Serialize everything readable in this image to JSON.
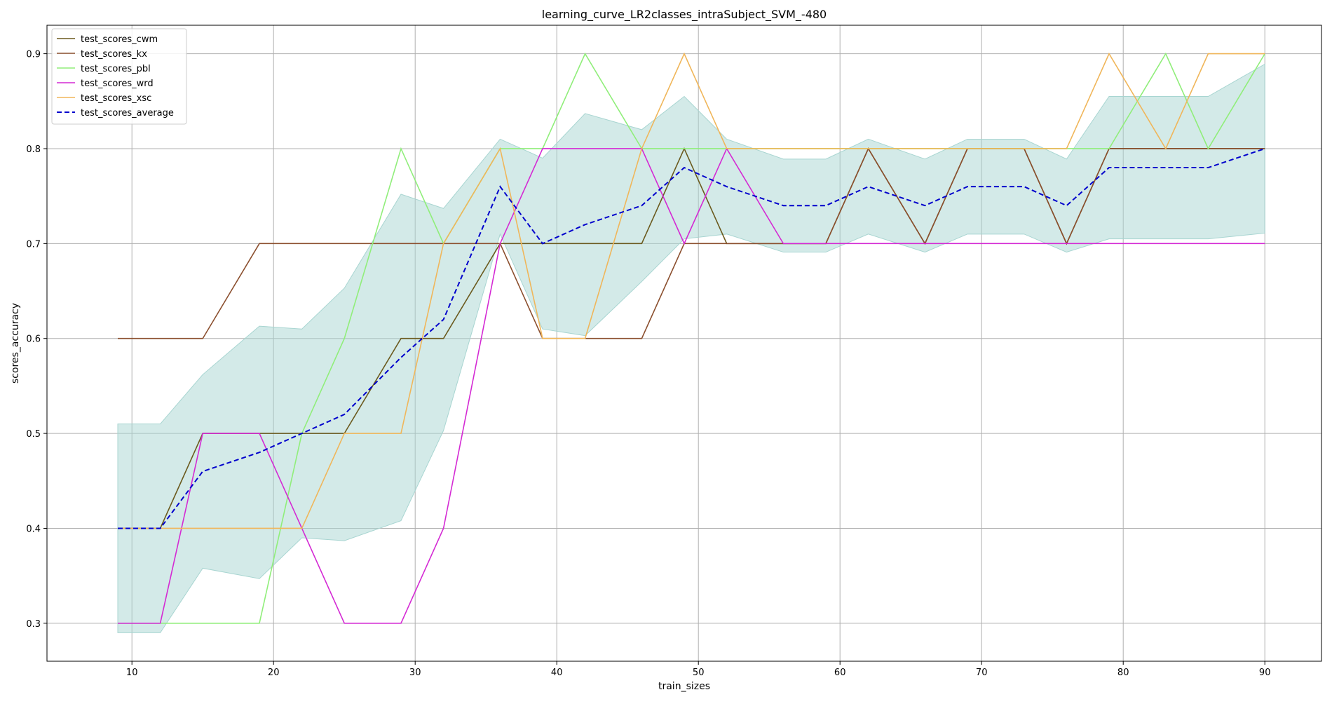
{
  "chart_data": {
    "type": "line",
    "title": "learning_curve_LR2classes_intraSubject_SVM_-480",
    "xlabel": "train_sizes",
    "ylabel": "scores_accuracy",
    "xlim": [
      4,
      94
    ],
    "ylim": [
      0.26,
      0.93
    ],
    "xticks": [
      10,
      20,
      30,
      40,
      50,
      60,
      70,
      80,
      90
    ],
    "yticks": [
      0.3,
      0.4,
      0.5,
      0.6,
      0.7,
      0.8,
      0.9
    ],
    "grid": true,
    "legend_position": "upper-left",
    "x": [
      9,
      12,
      15,
      19,
      22,
      25,
      29,
      32,
      36,
      39,
      42,
      46,
      49,
      52,
      56,
      59,
      62,
      66,
      69,
      73,
      76,
      79,
      83,
      86,
      90
    ],
    "series": [
      {
        "name": "test_scores_cwm",
        "color": "#6b5a1e",
        "style": "solid",
        "values": [
          0.4,
          0.4,
          0.5,
          0.5,
          0.5,
          0.5,
          0.6,
          0.6,
          0.7,
          0.7,
          0.7,
          0.7,
          0.8,
          0.7,
          0.7,
          0.7,
          0.8,
          0.7,
          0.8,
          0.8,
          0.7,
          0.8,
          0.8,
          0.8,
          0.8
        ]
      },
      {
        "name": "test_scores_kx",
        "color": "#8b4f2e",
        "style": "solid",
        "values": [
          0.6,
          0.6,
          0.6,
          0.7,
          0.7,
          0.7,
          0.7,
          0.7,
          0.7,
          0.6,
          0.6,
          0.6,
          0.7,
          0.7,
          0.7,
          0.7,
          0.8,
          0.7,
          0.8,
          0.8,
          0.7,
          0.8,
          0.8,
          0.8,
          0.8
        ]
      },
      {
        "name": "test_scores_pbl",
        "color": "#90ee7a",
        "style": "solid",
        "values": [
          0.3,
          0.3,
          0.3,
          0.3,
          0.5,
          0.6,
          0.8,
          0.7,
          0.8,
          0.8,
          0.9,
          0.8,
          0.8,
          0.8,
          0.8,
          0.8,
          0.8,
          0.8,
          0.8,
          0.8,
          0.8,
          0.8,
          0.9,
          0.8,
          0.9
        ]
      },
      {
        "name": "test_scores_wrd",
        "color": "#d42ad4",
        "style": "solid",
        "values": [
          0.3,
          0.3,
          0.5,
          0.5,
          0.4,
          0.3,
          0.3,
          0.4,
          0.7,
          0.8,
          0.8,
          0.8,
          0.7,
          0.8,
          0.7,
          0.7,
          0.7,
          0.7,
          0.7,
          0.7,
          0.7,
          0.7,
          0.7,
          0.7,
          0.7
        ]
      },
      {
        "name": "test_scores_xsc",
        "color": "#f0b65a",
        "style": "solid",
        "values": [
          0.4,
          0.4,
          0.4,
          0.4,
          0.4,
          0.5,
          0.5,
          0.7,
          0.8,
          0.6,
          0.6,
          0.8,
          0.9,
          0.8,
          0.8,
          0.8,
          0.8,
          0.8,
          0.8,
          0.8,
          0.8,
          0.9,
          0.8,
          0.9,
          0.9
        ]
      },
      {
        "name": "test_scores_average",
        "color": "#0000cc",
        "style": "dashed",
        "values": [
          0.4,
          0.4,
          0.46,
          0.48,
          0.5,
          0.52,
          0.58,
          0.62,
          0.76,
          0.7,
          0.72,
          0.74,
          0.78,
          0.76,
          0.74,
          0.74,
          0.76,
          0.74,
          0.76,
          0.76,
          0.74,
          0.78,
          0.78,
          0.78,
          0.8
        ]
      }
    ],
    "band": {
      "color": "#a8d5d1",
      "upper": [
        0.51,
        0.51,
        0.562,
        0.613,
        0.61,
        0.653,
        0.752,
        0.737,
        0.81,
        0.79,
        0.837,
        0.82,
        0.855,
        0.81,
        0.789,
        0.789,
        0.81,
        0.789,
        0.81,
        0.81,
        0.789,
        0.855,
        0.855,
        0.855,
        0.889
      ],
      "lower": [
        0.29,
        0.29,
        0.358,
        0.347,
        0.39,
        0.387,
        0.408,
        0.503,
        0.71,
        0.61,
        0.603,
        0.66,
        0.705,
        0.71,
        0.691,
        0.691,
        0.71,
        0.691,
        0.71,
        0.71,
        0.691,
        0.705,
        0.705,
        0.705,
        0.711
      ]
    }
  }
}
